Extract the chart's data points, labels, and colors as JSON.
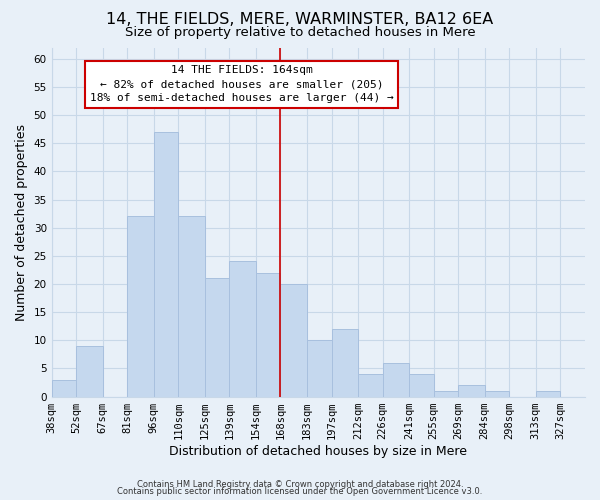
{
  "title": "14, THE FIELDS, MERE, WARMINSTER, BA12 6EA",
  "subtitle": "Size of property relative to detached houses in Mere",
  "xlabel": "Distribution of detached houses by size in Mere",
  "ylabel": "Number of detached properties",
  "footer1": "Contains HM Land Registry data © Crown copyright and database right 2024.",
  "footer2": "Contains public sector information licensed under the Open Government Licence v3.0.",
  "annotation_line1": "14 THE FIELDS: 164sqm",
  "annotation_line2": "← 82% of detached houses are smaller (205)",
  "annotation_line3": "18% of semi-detached houses are larger (44) →",
  "bar_left_edges": [
    38,
    52,
    67,
    81,
    96,
    110,
    125,
    139,
    154,
    168,
    183,
    197,
    212,
    226,
    241,
    255,
    269,
    284,
    298,
    313
  ],
  "bar_heights": [
    3,
    9,
    0,
    32,
    47,
    32,
    21,
    24,
    22,
    20,
    10,
    12,
    4,
    6,
    4,
    1,
    2,
    1,
    0,
    1
  ],
  "bar_color": "#c5d8ee",
  "bar_edge_color": "#a8c0de",
  "property_line_x": 168,
  "property_line_color": "#cc0000",
  "annotation_box_color": "#cc0000",
  "annotation_box_fill": "#ffffff",
  "xlim": [
    38,
    341
  ],
  "ylim": [
    0,
    62
  ],
  "yticks": [
    0,
    5,
    10,
    15,
    20,
    25,
    30,
    35,
    40,
    45,
    50,
    55,
    60
  ],
  "xtick_labels": [
    "38sqm",
    "52sqm",
    "67sqm",
    "81sqm",
    "96sqm",
    "110sqm",
    "125sqm",
    "139sqm",
    "154sqm",
    "168sqm",
    "183sqm",
    "197sqm",
    "212sqm",
    "226sqm",
    "241sqm",
    "255sqm",
    "269sqm",
    "284sqm",
    "298sqm",
    "313sqm",
    "327sqm"
  ],
  "xtick_positions": [
    38,
    52,
    67,
    81,
    96,
    110,
    125,
    139,
    154,
    168,
    183,
    197,
    212,
    226,
    241,
    255,
    269,
    284,
    298,
    313,
    327
  ],
  "grid_color": "#c8d8e8",
  "background_color": "#e8f0f8",
  "title_fontsize": 11.5,
  "subtitle_fontsize": 9.5,
  "axis_label_fontsize": 9,
  "tick_fontsize": 7.5,
  "annotation_fontsize": 8,
  "footer_fontsize": 6
}
